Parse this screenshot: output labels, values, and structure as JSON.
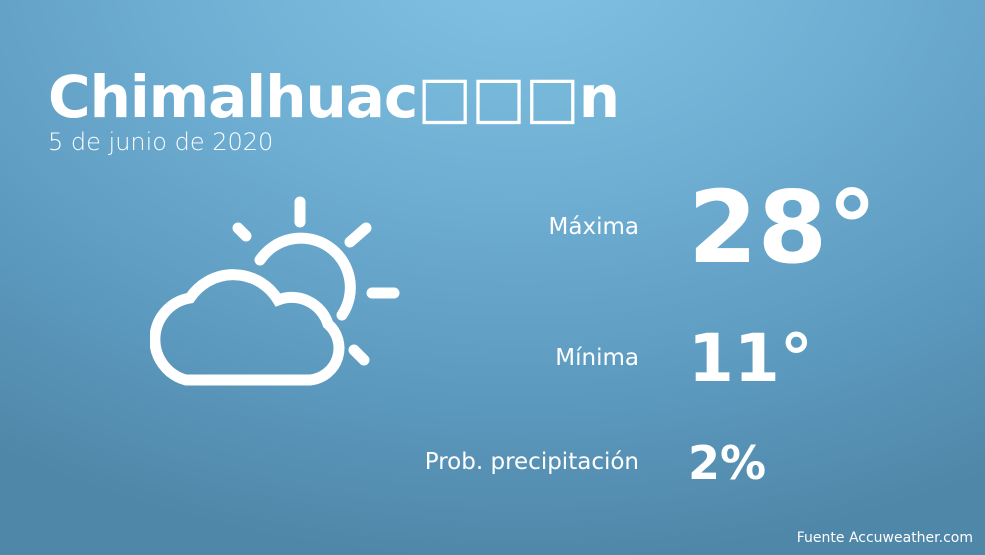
{
  "header": {
    "city": "Chimalhuac□□□n",
    "date": "5 de junio de 2020"
  },
  "weather_icon": "partly-cloudy-icon",
  "stats": {
    "max_label": "Máxima",
    "max_value": "28°",
    "min_label": "Mínima",
    "min_value": "11°",
    "precip_label": "Prob. precipitación",
    "precip_value": "2%"
  },
  "footer": {
    "source": "Fuente Accuweather.com"
  }
}
